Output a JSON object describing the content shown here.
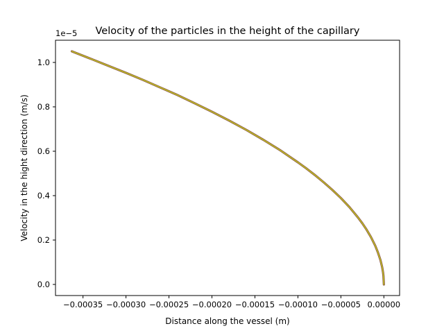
{
  "chart_data": {
    "type": "line",
    "title": "Velocity of the particles in the height of the capillary",
    "xlabel": "Distance along the vessel (m)",
    "ylabel": "Velocity in the hight direction (m/s)",
    "y_offset_label": "1e−5",
    "xlim": [
      -0.000382,
      1.83e-05
    ],
    "ylim": [
      -5e-07,
      1.1e-05
    ],
    "x_ticks": [
      -0.00035,
      -0.0003,
      -0.00025,
      -0.0002,
      -0.00015,
      -0.0001,
      -5e-05,
      0.0
    ],
    "x_tick_labels": [
      "−0.00035",
      "−0.00030",
      "−0.00025",
      "−0.00020",
      "−0.00015",
      "−0.00010",
      "−0.00005",
      "0.00000"
    ],
    "y_ticks": [
      0.0,
      2e-06,
      4e-06,
      6e-06,
      8e-06,
      1e-05
    ],
    "y_tick_labels": [
      "0.0",
      "0.2",
      "0.4",
      "0.6",
      "0.8",
      "1.0"
    ],
    "grid": false,
    "series": [
      {
        "color": "#bcbd22",
        "edge_color": "#8c564b",
        "x": [
          0.0,
          -5e-07,
          -1e-06,
          -2e-06,
          -4e-06,
          -7e-06,
          -1e-05,
          -1.5e-05,
          -2e-05,
          -2.5e-05,
          -3e-05,
          -4e-05,
          -5e-05,
          -6e-05,
          -7e-05,
          -8e-05,
          -9e-05,
          -0.0001,
          -0.00012,
          -0.00014,
          -0.00016,
          -0.00018,
          -0.0002,
          -0.00022,
          -0.00024,
          -0.00026,
          -0.00028,
          -0.0003,
          -0.00032,
          -0.00034,
          -0.000363
        ],
        "y": [
          0.0,
          3.9e-07,
          5.5e-07,
          7.8e-07,
          1.1e-06,
          1.45e-06,
          1.74e-06,
          2.13e-06,
          2.46e-06,
          2.75e-06,
          3.01e-06,
          3.48e-06,
          3.89e-06,
          4.26e-06,
          4.6e-06,
          4.92e-06,
          5.22e-06,
          5.5e-06,
          6.03e-06,
          6.51e-06,
          6.96e-06,
          7.38e-06,
          7.78e-06,
          8.16e-06,
          8.53e-06,
          8.87e-06,
          9.21e-06,
          9.53e-06,
          9.84e-06,
          1.015e-05,
          1.05e-05
        ]
      }
    ]
  }
}
